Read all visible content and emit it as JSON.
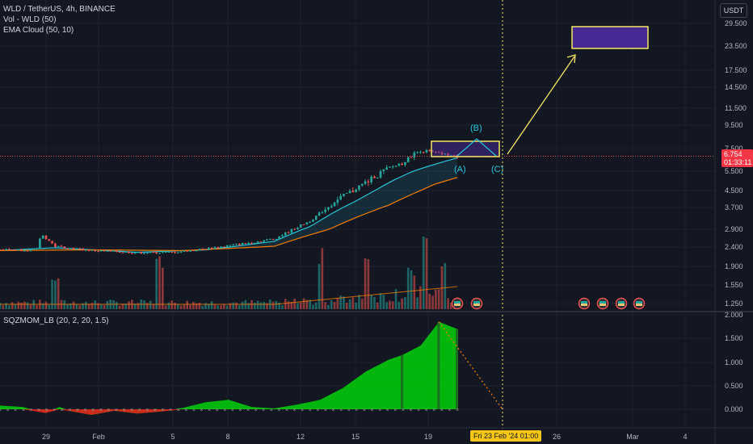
{
  "header": {
    "symbol_line": "WLD / TetherUS, 4h, BINANCE",
    "volume_line": "Vol - WLD (50)",
    "ema_line": "EMA Cloud (50, 10)",
    "indicator_line": "SQZMOM_LB (20, 2, 20, 1.5)"
  },
  "currency_button": "USDT",
  "current_price": {
    "value": "6.754",
    "countdown": "01:33:11",
    "color": "#f23645"
  },
  "crosshair_date": "Fri 23 Feb '24   01:00",
  "wave_labels": {
    "a": "(A)",
    "b": "(B)",
    "c": "(C)"
  },
  "colors": {
    "up": "#26a69a",
    "down": "#ef5350",
    "ema_fast": "#26c6da",
    "ema_slow": "#f57c00",
    "drawing": "#f5e663",
    "target_box": "#512da8",
    "mom_up": "#00c70a",
    "mom_dark": "#1b6e1f",
    "mom_down": "#e01c1c"
  },
  "chart_data": [
    {
      "type": "candlestick",
      "price_axis": {
        "scale": "log",
        "ticks": [
          "29.500",
          "23.500",
          "17.500",
          "14.500",
          "11.500",
          "9.500",
          "7.500",
          "5.500",
          "4.500",
          "3.700",
          "2.900",
          "2.400",
          "1.900",
          "1.550",
          "1.250"
        ]
      },
      "x_ticks": [
        "29",
        "Feb",
        "5",
        "8",
        "12",
        "15",
        "19",
        "26",
        "Mar",
        "4"
      ],
      "price_path": [
        [
          0,
          2.33
        ],
        [
          0.08,
          2.32
        ],
        [
          0.09,
          2.75
        ],
        [
          0.12,
          2.42
        ],
        [
          0.2,
          2.3
        ],
        [
          0.3,
          2.24
        ],
        [
          0.38,
          2.25
        ],
        [
          0.45,
          2.35
        ],
        [
          0.55,
          2.52
        ],
        [
          0.6,
          2.62
        ],
        [
          0.63,
          2.82
        ],
        [
          0.68,
          3.2
        ],
        [
          0.75,
          4.2
        ],
        [
          0.82,
          5.2
        ],
        [
          0.88,
          6.2
        ],
        [
          0.92,
          7.35
        ],
        [
          0.96,
          7.0
        ],
        [
          1,
          6.75
        ]
      ],
      "ema_fast_path": [
        [
          0,
          2.3
        ],
        [
          0.12,
          2.38
        ],
        [
          0.3,
          2.25
        ],
        [
          0.45,
          2.32
        ],
        [
          0.6,
          2.55
        ],
        [
          0.68,
          3.0
        ],
        [
          0.78,
          4.0
        ],
        [
          0.86,
          5.0
        ],
        [
          1,
          6.6
        ]
      ],
      "ema_slow_path": [
        [
          0,
          2.3
        ],
        [
          0.2,
          2.32
        ],
        [
          0.4,
          2.3
        ],
        [
          0.6,
          2.42
        ],
        [
          0.72,
          2.9
        ],
        [
          0.85,
          3.8
        ],
        [
          0.95,
          4.8
        ],
        [
          1,
          5.15
        ]
      ],
      "volume_peaks": [
        [
          0.35,
          0.72
        ],
        [
          0.12,
          0.5
        ],
        [
          0.7,
          0.82
        ],
        [
          0.8,
          0.75
        ],
        [
          0.9,
          0.6
        ],
        [
          0.93,
          0.95
        ],
        [
          0.97,
          0.7
        ]
      ]
    },
    {
      "type": "area",
      "title": "SQZMOM_LB (20, 2, 20, 1.5)",
      "y_ticks": [
        "2.000",
        "1.500",
        "1.000",
        "0.500",
        "0.000"
      ],
      "x": [
        0,
        0.05,
        0.1,
        0.13,
        0.16,
        0.2,
        0.25,
        0.3,
        0.35,
        0.4,
        0.45,
        0.5,
        0.55,
        0.6,
        0.65,
        0.7,
        0.75,
        0.8,
        0.85,
        0.88,
        0.92,
        0.96,
        1
      ],
      "values": [
        0.08,
        0.05,
        -0.08,
        0.05,
        -0.05,
        -0.12,
        -0.03,
        -0.09,
        -0.05,
        0.03,
        0.15,
        0.2,
        0.05,
        0.02,
        0.1,
        0.2,
        0.45,
        0.8,
        1.05,
        1.15,
        1.35,
        1.85,
        1.7
      ]
    }
  ]
}
